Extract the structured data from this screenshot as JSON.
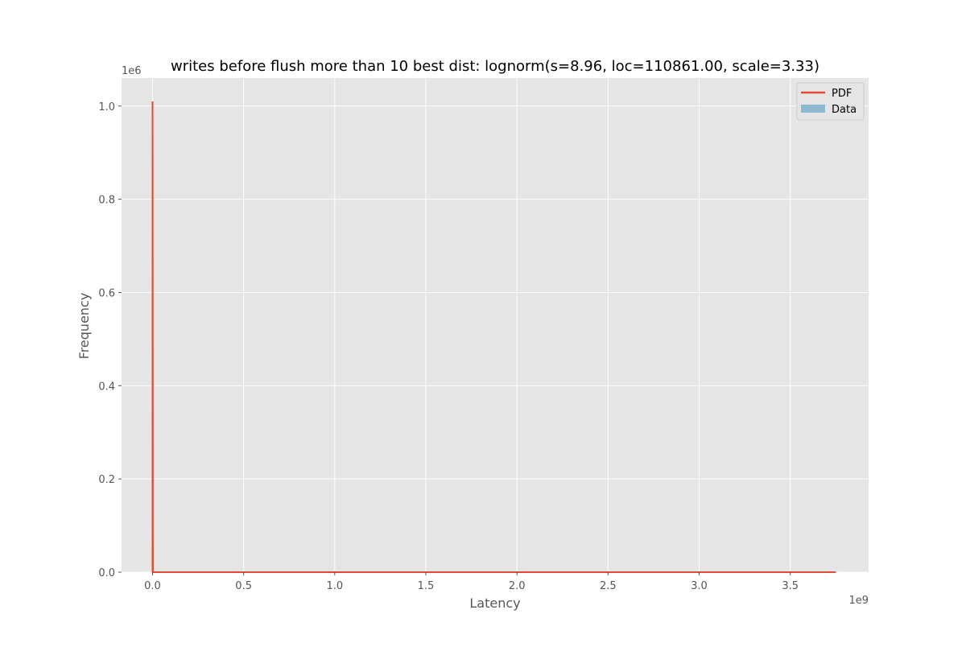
{
  "chart_data": {
    "type": "histogram",
    "title": "writes before flush more than 10 best dist: lognorm(s=8.96, loc=110861.00, scale=3.33)",
    "xlabel": "Latency",
    "ylabel": "Frequency",
    "x_offset_label": "1e9",
    "y_offset_label": "1e6",
    "xlim": [
      -0.17,
      3.93
    ],
    "ylim": [
      0,
      1.06
    ],
    "x_ticks": [
      0.0,
      0.5,
      1.0,
      1.5,
      2.0,
      2.5,
      3.0,
      3.5
    ],
    "x_tick_labels": [
      "0.0",
      "0.5",
      "1.0",
      "1.5",
      "2.0",
      "2.5",
      "3.0",
      "3.5"
    ],
    "y_ticks": [
      0.0,
      0.2,
      0.4,
      0.6,
      0.8,
      1.0
    ],
    "y_tick_labels": [
      "0.0",
      "0.2",
      "0.4",
      "0.6",
      "0.8",
      "1.0"
    ],
    "grid": true,
    "legend": {
      "placement": "upper right",
      "entries": [
        {
          "label": "PDF",
          "kind": "line",
          "color": "#e24a33"
        },
        {
          "label": "Data",
          "kind": "patch",
          "color": "#8eb7d0"
        }
      ]
    },
    "series": [
      {
        "name": "PDF",
        "kind": "line",
        "color": "#e24a33",
        "x": [
          0.0001,
          0.0001,
          0.002,
          3.75
        ],
        "y": [
          0.0,
          1.01,
          0.0,
          0.0
        ]
      },
      {
        "name": "Data",
        "kind": "bars",
        "color": "#8eb7d0",
        "values": []
      }
    ],
    "colors": {
      "plot_background": "#e5e5e5",
      "grid": "#ffffff",
      "text": "#555555",
      "title": "#000000"
    }
  }
}
